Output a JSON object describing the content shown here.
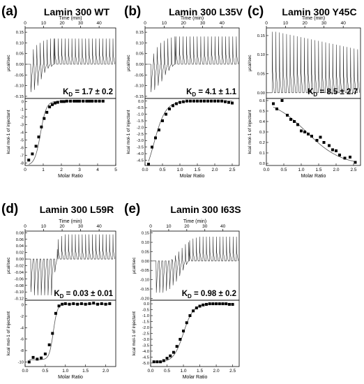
{
  "chart_data": [
    {
      "letter": "(a)",
      "title": "Lamin 300 WT",
      "kd": "1.7 ± 0.2",
      "top": {
        "xlabel": "Time (min)",
        "ylabel": "µcal/sec",
        "xticks": [
          0,
          10,
          20,
          30,
          40
        ],
        "yticks": [
          -0.15,
          -0.1,
          -0.05,
          0.0,
          0.05,
          0.1,
          0.15
        ],
        "xlim": [
          0,
          49
        ],
        "ylim": [
          -0.16,
          0.17
        ],
        "peaks": {
          "count": 25,
          "t0": 3,
          "dt": 1.85,
          "neg": [
            -0.13,
            -0.12,
            -0.1,
            -0.07,
            -0.04,
            -0.02,
            -0.01,
            0,
            0,
            0,
            0,
            0,
            0,
            0,
            0,
            0,
            0,
            0,
            0,
            0,
            0,
            0,
            0,
            0,
            0
          ],
          "pos": [
            0.07,
            0.09,
            0.1,
            0.11,
            0.115,
            0.12,
            0.12,
            0.12,
            0.12,
            0.12,
            0.12,
            0.12,
            0.12,
            0.12,
            0.12,
            0.12,
            0.12,
            0.12,
            0.12,
            0.12,
            0.12,
            0.12,
            0.12,
            0.12,
            0.12
          ]
        }
      },
      "bottom": {
        "type": "scatter",
        "xlabel": "Molar Ratio",
        "ylabel": "kcal mol-1 of injectant",
        "xticks": [
          0,
          1,
          2,
          3,
          4,
          5
        ],
        "yticks": [
          0.0,
          -1.0,
          -2.0,
          -3.0,
          -4.0,
          -5.0,
          -6.0,
          -7.0,
          -8.0
        ],
        "xlim": [
          0,
          5
        ],
        "ylim": [
          -8.3,
          0.4
        ],
        "x": [
          0.2,
          0.4,
          0.6,
          0.75,
          0.9,
          1.05,
          1.2,
          1.35,
          1.5,
          1.65,
          1.8,
          2.0,
          2.15,
          2.3,
          2.5,
          2.7,
          2.85,
          3.0,
          3.2,
          3.4,
          3.55,
          3.7,
          3.9,
          4.1,
          4.3
        ],
        "y": [
          -7.6,
          -6.8,
          -5.8,
          -4.6,
          -3.3,
          -2.2,
          -1.4,
          -0.7,
          -0.4,
          -0.2,
          -0.1,
          0,
          0,
          0.05,
          0.05,
          0.05,
          0.05,
          0.05,
          0.05,
          0.05,
          0.05,
          0.05,
          0.05,
          0.05,
          0.05
        ],
        "fit": {
          "x0": 0.85,
          "k": 0.16,
          "bottom": -8.3,
          "top": 0.05
        }
      }
    },
    {
      "letter": "(b)",
      "title": "Lamin 300 L35V",
      "kd": "4.1 ± 1.1",
      "top": {
        "xlabel": "Time (min)",
        "ylabel": "µcal/sec",
        "xticks": [
          0,
          10,
          20,
          30,
          40
        ],
        "yticks": [
          -0.15,
          -0.1,
          -0.05,
          0.0,
          0.05,
          0.1,
          0.15
        ],
        "xlim": [
          0,
          49
        ],
        "ylim": [
          -0.16,
          0.17
        ],
        "peaks": {
          "count": 25,
          "t0": 3,
          "dt": 1.85,
          "neg": [
            -0.13,
            -0.12,
            -0.1,
            -0.08,
            -0.05,
            -0.03,
            -0.01,
            0,
            0,
            0,
            0,
            0,
            0,
            0,
            0,
            0,
            0,
            0,
            0,
            0,
            0,
            0,
            0,
            0,
            0
          ],
          "pos": [
            0.05,
            0.08,
            0.1,
            0.11,
            0.12,
            0.125,
            0.13,
            0.13,
            0.13,
            0.13,
            0.13,
            0.13,
            0.13,
            0.13,
            0.13,
            0.13,
            0.13,
            0.13,
            0.13,
            0.13,
            0.13,
            0.13,
            0.13,
            0.13,
            0.13
          ]
        }
      },
      "bottom": {
        "type": "scatter",
        "xlabel": "Molar Ratio",
        "ylabel": "kcal mol-1 of injectant",
        "xticks": [
          0.0,
          0.5,
          1.0,
          1.5,
          2.0,
          2.5
        ],
        "yticks": [
          0.0,
          -0.5,
          -1.0,
          -1.5,
          -2.0,
          -2.5,
          -3.0,
          -3.5,
          -4.0,
          -4.5
        ],
        "xlim": [
          0,
          2.7
        ],
        "ylim": [
          -4.9,
          0.2
        ],
        "x": [
          0.1,
          0.2,
          0.3,
          0.4,
          0.5,
          0.6,
          0.7,
          0.8,
          0.9,
          1.0,
          1.1,
          1.2,
          1.3,
          1.4,
          1.5,
          1.6,
          1.7,
          1.8,
          1.9,
          2.0,
          2.1,
          2.2,
          2.3,
          2.4,
          2.5
        ],
        "y": [
          -4.8,
          -3.5,
          -2.8,
          -2.2,
          -1.5,
          -1.0,
          -0.6,
          -0.35,
          -0.2,
          -0.1,
          -0.05,
          0,
          0,
          0,
          0,
          0,
          0,
          0,
          0,
          0,
          0,
          0,
          -0.05,
          -0.1,
          -0.15
        ],
        "fit": {
          "x0": 0.25,
          "k": 0.17,
          "bottom": -6.5,
          "top": 0.0
        }
      }
    },
    {
      "letter": "(c)",
      "title": "Lamin 300 Y45C",
      "kd": "8.5 ± 2.7",
      "top": {
        "xlabel": "Time (min)",
        "ylabel": "µcal/sec",
        "xticks": [
          0,
          10,
          20,
          30,
          40
        ],
        "yticks": [
          0.0,
          0.05,
          0.1,
          0.15
        ],
        "xlim": [
          0,
          49
        ],
        "ylim": [
          -0.015,
          0.17
        ],
        "peaks": {
          "count": 25,
          "t0": 3,
          "dt": 1.85,
          "neg": [
            0,
            0,
            0,
            0,
            0,
            0,
            0,
            0,
            0,
            0,
            0,
            0,
            0,
            0,
            0,
            0,
            0,
            0,
            0,
            0,
            0,
            0,
            0,
            0,
            0
          ],
          "pos": [
            0.16,
            0.16,
            0.158,
            0.156,
            0.154,
            0.152,
            0.15,
            0.148,
            0.146,
            0.144,
            0.142,
            0.14,
            0.138,
            0.136,
            0.134,
            0.132,
            0.13,
            0.128,
            0.126,
            0.124,
            0.122,
            0.12,
            0.118,
            0.116,
            0.114
          ]
        }
      },
      "bottom": {
        "type": "scatter",
        "xlabel": "Molar Ratio",
        "ylabel": "kcal mol-1 of injectant",
        "xticks": [
          0.0,
          0.5,
          1.0,
          1.5,
          2.0,
          2.5
        ],
        "yticks": [
          0.0,
          0.1,
          0.2,
          0.3,
          0.4,
          0.5,
          0.6
        ],
        "xlim": [
          0,
          2.7
        ],
        "ylim": [
          -0.02,
          0.62
        ],
        "x": [
          0.2,
          0.3,
          0.45,
          0.6,
          0.7,
          0.8,
          0.9,
          1.0,
          1.1,
          1.2,
          1.3,
          1.45,
          1.55,
          1.65,
          1.8,
          1.9,
          2.0,
          2.1,
          2.25,
          2.4,
          2.55
        ],
        "y": [
          0.57,
          0.52,
          0.6,
          0.46,
          0.42,
          0.4,
          0.37,
          0.31,
          0.3,
          0.28,
          0.26,
          0.22,
          0.25,
          0.2,
          0.17,
          0.13,
          0.12,
          0.08,
          0.05,
          0.06,
          0.01
        ],
        "fit": {
          "x0": 1.15,
          "k": 0.5,
          "bottom": 0.62,
          "top": -0.02
        }
      }
    },
    {
      "letter": "(d)",
      "title": "Lamin 300 L59R",
      "kd": "0.03 ± 0.01",
      "top": {
        "xlabel": "Time (min)",
        "ylabel": "µcal/sec",
        "xticks": [
          0,
          10,
          20,
          30,
          40
        ],
        "yticks": [
          -0.12,
          -0.1,
          -0.08,
          -0.06,
          -0.04,
          -0.02,
          0.0,
          0.02,
          0.04,
          0.06,
          0.08
        ],
        "xlim": [
          0,
          49
        ],
        "ylim": [
          -0.125,
          0.085
        ],
        "peaks": {
          "count": 25,
          "t0": 3,
          "dt": 1.85,
          "neg": [
            -0.1,
            -0.11,
            -0.11,
            -0.11,
            -0.11,
            -0.11,
            -0.11,
            -0.04,
            0,
            0,
            0,
            0,
            0,
            0,
            0,
            0,
            0,
            0,
            0,
            0,
            0,
            0,
            0,
            0,
            0
          ],
          "pos": [
            0,
            0,
            0,
            0,
            0,
            0,
            0,
            0.03,
            0.06,
            0.07,
            0.075,
            0.075,
            0.075,
            0.075,
            0.075,
            0.075,
            0.075,
            0.075,
            0.075,
            0.075,
            0.075,
            0.075,
            0.075,
            0.075,
            0.075
          ]
        }
      },
      "bottom": {
        "type": "scatter",
        "xlabel": "Molar Ratio",
        "ylabel": "kcal mol-1 of injectant",
        "xticks": [
          0.0,
          0.5,
          1.0,
          1.5,
          2.0
        ],
        "yticks": [
          0.0,
          -2.0,
          -4.0,
          -6.0,
          -8.0,
          -10.0
        ],
        "xlim": [
          0,
          2.25
        ],
        "ylim": [
          -10.8,
          0.8
        ],
        "x": [
          0.1,
          0.2,
          0.3,
          0.4,
          0.5,
          0.6,
          0.68,
          0.76,
          0.84,
          0.92,
          1.0,
          1.1,
          1.2,
          1.3,
          1.4,
          1.5,
          1.6,
          1.7,
          1.8,
          1.9,
          2.0,
          2.1
        ],
        "y": [
          -10.0,
          -9.2,
          -9.5,
          -9.3,
          -8.6,
          -7.0,
          -5.0,
          -1.5,
          -0.2,
          0.1,
          0.2,
          0.1,
          0.2,
          0.1,
          0.2,
          0.1,
          0.2,
          0.3,
          0.1,
          0.2,
          0.1,
          0.2
        ],
        "fit": {
          "x0": 0.7,
          "k": 0.05,
          "bottom": -9.6,
          "top": 0.15
        }
      }
    },
    {
      "letter": "(e)",
      "title": "Lamin 300 I63S",
      "kd": "0.98 ± 0.2",
      "top": {
        "xlabel": "Time (min)",
        "ylabel": "µcal/sec",
        "xticks": [
          0,
          10,
          20,
          30,
          40
        ],
        "yticks": [
          -0.2,
          -0.15,
          -0.1,
          -0.05,
          0.0,
          0.05,
          0.1,
          0.15
        ],
        "xlim": [
          0,
          49
        ],
        "ylim": [
          -0.21,
          0.16
        ],
        "peaks": {
          "count": 25,
          "t0": 3,
          "dt": 1.85,
          "neg": [
            -0.17,
            -0.17,
            -0.17,
            -0.16,
            -0.15,
            -0.13,
            -0.11,
            -0.08,
            -0.05,
            -0.02,
            0,
            0,
            0,
            0,
            0,
            0,
            0,
            0,
            0,
            0,
            0,
            0,
            0,
            0,
            0
          ],
          "pos": [
            0,
            0,
            0,
            0,
            0.01,
            0.03,
            0.05,
            0.07,
            0.09,
            0.1,
            0.11,
            0.12,
            0.125,
            0.13,
            0.13,
            0.13,
            0.13,
            0.13,
            0.13,
            0.13,
            0.13,
            0.13,
            0.13,
            0.13,
            0.13
          ]
        }
      },
      "bottom": {
        "type": "scatter",
        "xlabel": "Molar Ratio",
        "ylabel": "kcal mol-1 of injectant",
        "xticks": [
          0.0,
          0.5,
          1.0,
          1.5,
          2.0,
          2.5
        ],
        "yticks": [
          0.0,
          -0.5,
          -1.0,
          -1.5,
          -2.0,
          -2.5,
          -3.0,
          -3.5,
          -4.0,
          -4.5,
          -5.0
        ],
        "xlim": [
          0,
          2.7
        ],
        "ylim": [
          -5.3,
          0.3
        ],
        "x": [
          0.1,
          0.2,
          0.3,
          0.4,
          0.5,
          0.6,
          0.7,
          0.8,
          0.9,
          1.0,
          1.1,
          1.2,
          1.3,
          1.4,
          1.5,
          1.6,
          1.7,
          1.8,
          1.9,
          2.0,
          2.1,
          2.2,
          2.3,
          2.4,
          2.5
        ],
        "y": [
          -4.9,
          -4.9,
          -4.9,
          -4.8,
          -4.6,
          -4.4,
          -4.1,
          -3.6,
          -3.0,
          -2.3,
          -1.6,
          -1.0,
          -0.6,
          -0.35,
          -0.2,
          -0.1,
          -0.05,
          0,
          0,
          0,
          0,
          0,
          0,
          -0.05,
          -0.05
        ],
        "fit": {
          "x0": 1.0,
          "k": 0.15,
          "bottom": -4.95,
          "top": 0.0
        }
      }
    }
  ]
}
